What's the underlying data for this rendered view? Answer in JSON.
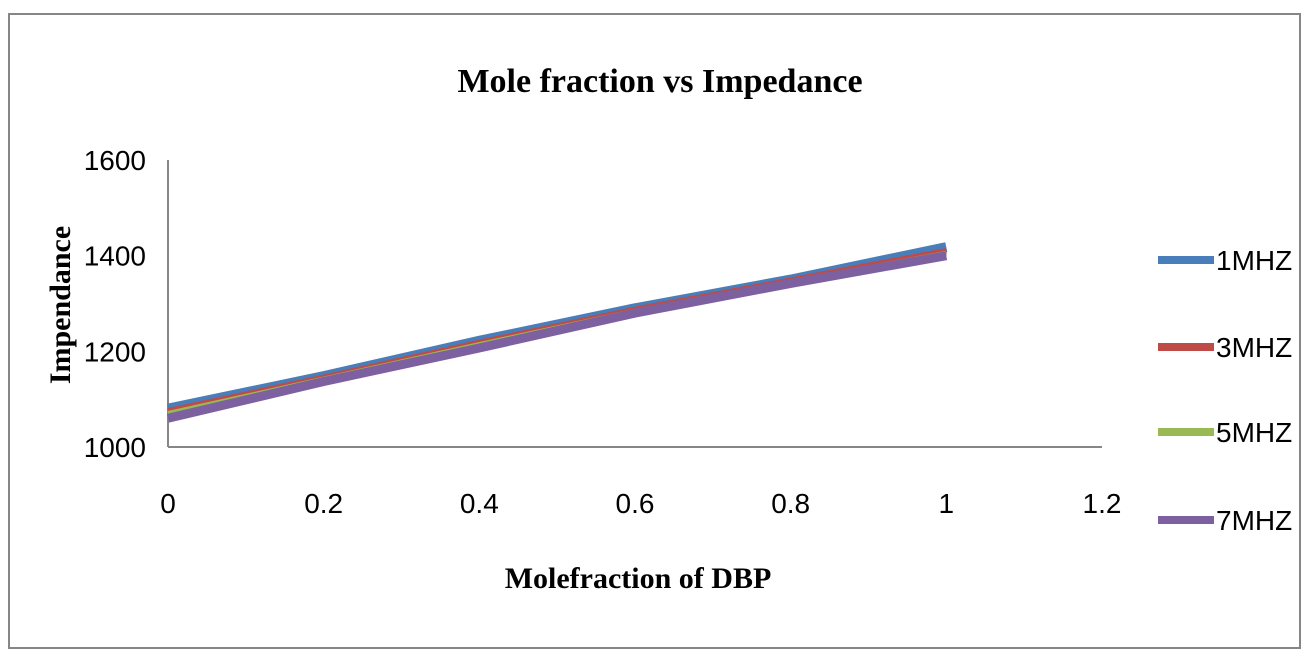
{
  "chart_data": {
    "type": "line",
    "title": "Mole fraction vs Impedance",
    "xlabel": "Molefraction of DBP",
    "ylabel": "Impendance",
    "xlim": [
      0,
      1.2
    ],
    "ylim": [
      1000,
      1600
    ],
    "x_ticks": [
      "0",
      "0.2",
      "0.4",
      "0.6",
      "0.8",
      "1",
      "1.2"
    ],
    "y_ticks": [
      "1000",
      "1200",
      "1400",
      "1600"
    ],
    "grid": false,
    "legend_position": "right",
    "series": [
      {
        "name": "1MHZ",
        "color": "#4a7ebb",
        "x": [
          0,
          0.2,
          0.4,
          0.6,
          0.8,
          1
        ],
        "y": [
          1080,
          1148,
          1222,
          1290,
          1350,
          1418
        ]
      },
      {
        "name": "3MHZ",
        "color": "#be4b48",
        "x": [
          0,
          0.2,
          0.4,
          0.6,
          0.8,
          1
        ],
        "y": [
          1075,
          1145,
          1218,
          1287,
          1348,
          1410
        ]
      },
      {
        "name": "5MHZ",
        "color": "#98b954",
        "x": [
          0,
          0.2,
          0.4,
          0.6,
          0.8,
          1
        ],
        "y": [
          1070,
          1142,
          1214,
          1284,
          1345,
          1405
        ]
      },
      {
        "name": "7MHZ",
        "color": "#7d60a0",
        "x": [
          0,
          0.2,
          0.4,
          0.6,
          0.8,
          1
        ],
        "y": [
          1060,
          1137,
          1207,
          1280,
          1342,
          1400
        ]
      }
    ]
  }
}
